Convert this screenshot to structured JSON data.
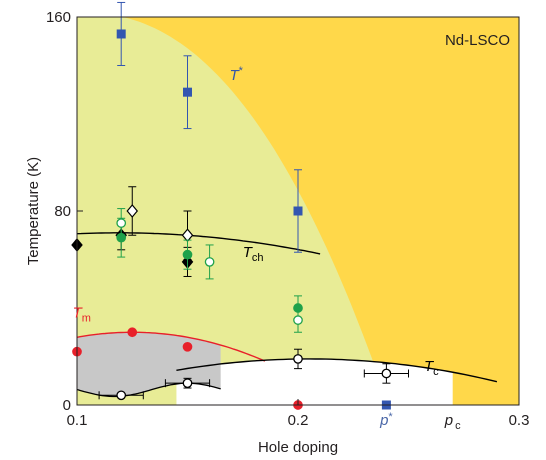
{
  "chart_data": {
    "type": "scatter",
    "inset_label": "Nd-LSCO",
    "xlabel": "Hole doping",
    "ylabel": "Temperature (K)",
    "xlim": [
      0.1,
      0.3
    ],
    "ylim": [
      0,
      160
    ],
    "x_ticks": [
      {
        "value": 0.1,
        "label": "0.1"
      },
      {
        "value": 0.2,
        "label": "0.2"
      },
      {
        "value": 0.3,
        "label": "0.3"
      }
    ],
    "y_ticks": [
      {
        "value": 0,
        "label": "0"
      },
      {
        "value": 80,
        "label": "80"
      },
      {
        "value": 160,
        "label": "160"
      }
    ],
    "axis_markers": [
      {
        "label": "p",
        "sup": "*",
        "x": 0.24,
        "color": "#4a67a8"
      },
      {
        "label": "p",
        "sub": "c",
        "x": 0.27,
        "color": "#231f20"
      }
    ],
    "regions": [
      {
        "name": "pseudogap",
        "color": "#ffd84a"
      },
      {
        "name": "charge order",
        "color": "#e8ec96"
      },
      {
        "name": "Tm dome",
        "color": "#c8c8c8"
      }
    ],
    "curves": [
      {
        "name": "T*",
        "label": "T",
        "sup": "*",
        "label_at": [
          0.169,
          134
        ],
        "color": "#3456a8"
      },
      {
        "name": "Tch",
        "label": "T",
        "sub": "ch",
        "label_at": [
          0.175,
          61
        ],
        "color": "#000000"
      },
      {
        "name": "Tm",
        "label": "T",
        "sub": "m",
        "label_at": [
          0.098,
          36
        ],
        "color": "#e8202a"
      },
      {
        "name": "Tc",
        "label": "T",
        "sub": "c",
        "label_at": [
          0.257,
          14
        ],
        "color": "#000000"
      }
    ],
    "series": [
      {
        "marker": "square",
        "fill": "#3356b0",
        "stroke": "#3356b0",
        "points": [
          {
            "x": 0.12,
            "y": 153,
            "err": 13
          },
          {
            "x": 0.15,
            "y": 129,
            "err": 15
          },
          {
            "x": 0.2,
            "y": 80,
            "err": 17
          },
          {
            "x": 0.24,
            "y": 0
          }
        ]
      },
      {
        "marker": "diamond",
        "fill": "#000000",
        "stroke": "#000000",
        "points": [
          {
            "x": 0.1,
            "y": 66
          },
          {
            "x": 0.12,
            "y": 70,
            "err": 6
          },
          {
            "x": 0.15,
            "y": 59,
            "err": 6
          }
        ]
      },
      {
        "marker": "diamond",
        "fill": "#ffffff",
        "stroke": "#000000",
        "points": [
          {
            "x": 0.125,
            "y": 80,
            "err": 10
          },
          {
            "x": 0.15,
            "y": 70,
            "err": 10
          }
        ]
      },
      {
        "marker": "circle",
        "fill": "#1fa14a",
        "stroke": "#1fa14a",
        "points": [
          {
            "x": 0.12,
            "y": 69,
            "err": 8
          },
          {
            "x": 0.15,
            "y": 62,
            "err": 6
          },
          {
            "x": 0.2,
            "y": 40,
            "err": 5
          }
        ]
      },
      {
        "marker": "circle",
        "fill": "#ffffff",
        "stroke": "#1fa14a",
        "points": [
          {
            "x": 0.12,
            "y": 75,
            "err": 6
          },
          {
            "x": 0.16,
            "y": 59,
            "err": 7
          },
          {
            "x": 0.2,
            "y": 35,
            "err": 5
          }
        ]
      },
      {
        "marker": "circle",
        "fill": "#e8202a",
        "stroke": "#e8202a",
        "points": [
          {
            "x": 0.1,
            "y": 22
          },
          {
            "x": 0.125,
            "y": 30
          },
          {
            "x": 0.15,
            "y": 24
          },
          {
            "x": 0.2,
            "y": 0
          }
        ]
      },
      {
        "marker": "circle",
        "fill": "#ffffff",
        "stroke": "#000000",
        "points": [
          {
            "x": 0.12,
            "y": 4,
            "xerr": 0.01
          },
          {
            "x": 0.15,
            "y": 9,
            "xerr": 0.01,
            "err": 2
          },
          {
            "x": 0.2,
            "y": 19,
            "err": 4
          },
          {
            "x": 0.24,
            "y": 13,
            "xerr": 0.01,
            "err": 4
          }
        ]
      }
    ]
  }
}
